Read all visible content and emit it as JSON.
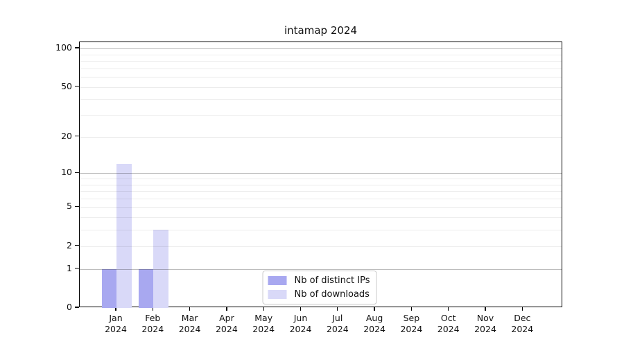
{
  "title": "intamap 2024",
  "chart_data": {
    "type": "bar",
    "title": "intamap 2024",
    "categories": [
      "Jan",
      "Feb",
      "Mar",
      "Apr",
      "May",
      "Jun",
      "Jul",
      "Aug",
      "Sep",
      "Oct",
      "Nov",
      "Dec"
    ],
    "category_year": "2024",
    "series": [
      {
        "name": "Nb of distinct IPs",
        "color": "#a8a8f0",
        "values": [
          1,
          1,
          0,
          0,
          0,
          0,
          0,
          0,
          0,
          0,
          0,
          0
        ]
      },
      {
        "name": "Nb of downloads",
        "color": "#d9d9f8",
        "values": [
          12,
          3,
          0,
          0,
          0,
          0,
          0,
          0,
          0,
          0,
          0,
          0
        ]
      }
    ],
    "xlabel": "",
    "ylabel": "",
    "y_axis": {
      "scale": "log10(1+value)",
      "tick_values": [
        0,
        1,
        2,
        5,
        10,
        20,
        50,
        100
      ],
      "tick_labels": [
        "0",
        "1",
        "2",
        "5",
        "10",
        "20",
        "50",
        "100"
      ],
      "major_grid_values": [
        1,
        10,
        100
      ],
      "minor_grid_values": [
        2,
        3,
        4,
        5,
        6,
        7,
        8,
        9,
        20,
        30,
        40,
        50,
        60,
        70,
        80,
        90
      ],
      "ylim": [
        0,
        112
      ]
    },
    "legend": {
      "position": "lower-center",
      "entries": [
        "Nb of distinct IPs",
        "Nb of downloads"
      ]
    },
    "colors": {
      "major_grid": "rgba(0,0,0,0.26)",
      "minor_grid": "rgba(0,0,0,0.075)",
      "axis_frame": "#000000",
      "background": "#ffffff"
    }
  }
}
